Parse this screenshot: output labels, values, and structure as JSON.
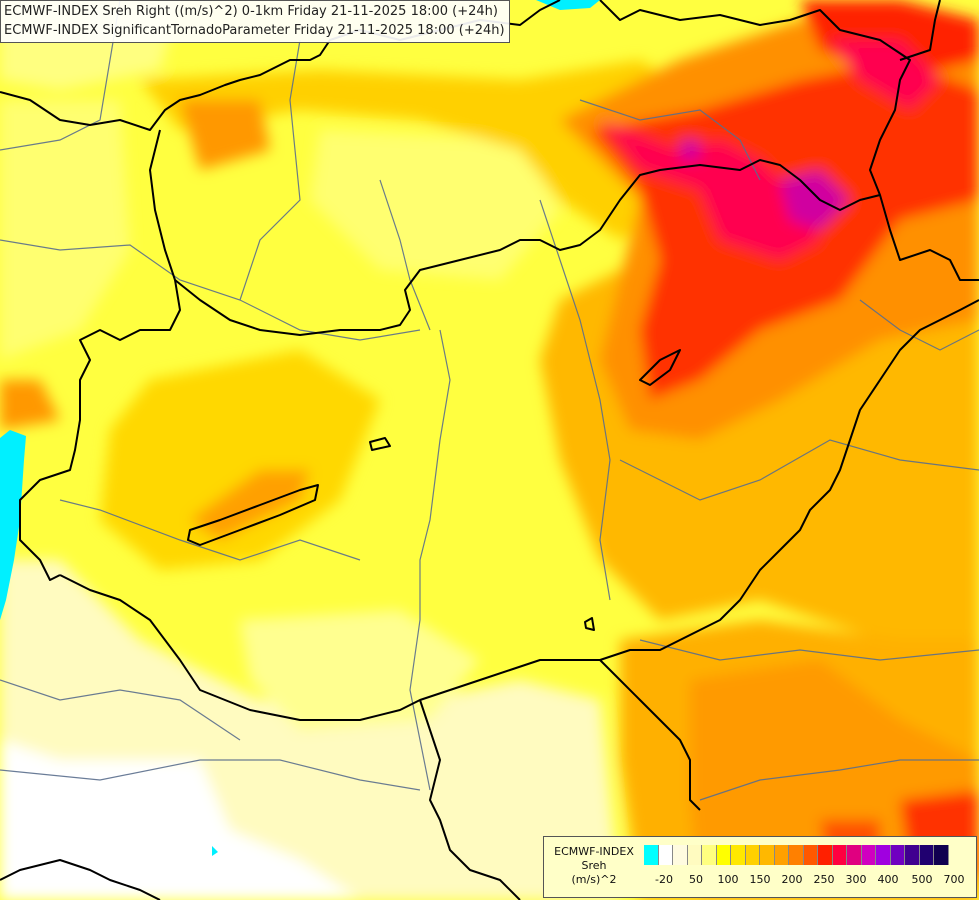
{
  "header": {
    "line1": "ECMWF-INDEX Sreh Right ((m/s)^2) 0-1km Friday 21-11-2025 18:00 (+24h)",
    "line2": "ECMWF-INDEX SignificantTornadoParameter Friday 21-11-2025 18:00 (+24h)"
  },
  "legend": {
    "title_line1": "ECMWF-INDEX",
    "title_line2": "Sreh",
    "title_line3": "(m/s)^2",
    "colors": [
      "#00ffff",
      "#ffffff",
      "#fffbe0",
      "#fffbc0",
      "#ffff80",
      "#ffff00",
      "#ffe800",
      "#ffd000",
      "#ffb800",
      "#ffa000",
      "#ff8000",
      "#ff5800",
      "#ff2000",
      "#ff0040",
      "#e00080",
      "#d000c0",
      "#a000e0",
      "#7000c0",
      "#400090",
      "#200070",
      "#100050"
    ],
    "ticks": [
      "-20",
      "50",
      "100",
      "150",
      "200",
      "250",
      "300",
      "400",
      "500",
      "700"
    ]
  },
  "map_colors": {
    "background": "#fffbc0",
    "border": "#000000",
    "river": "#5a6e8c",
    "sea": "#00e8f8"
  }
}
